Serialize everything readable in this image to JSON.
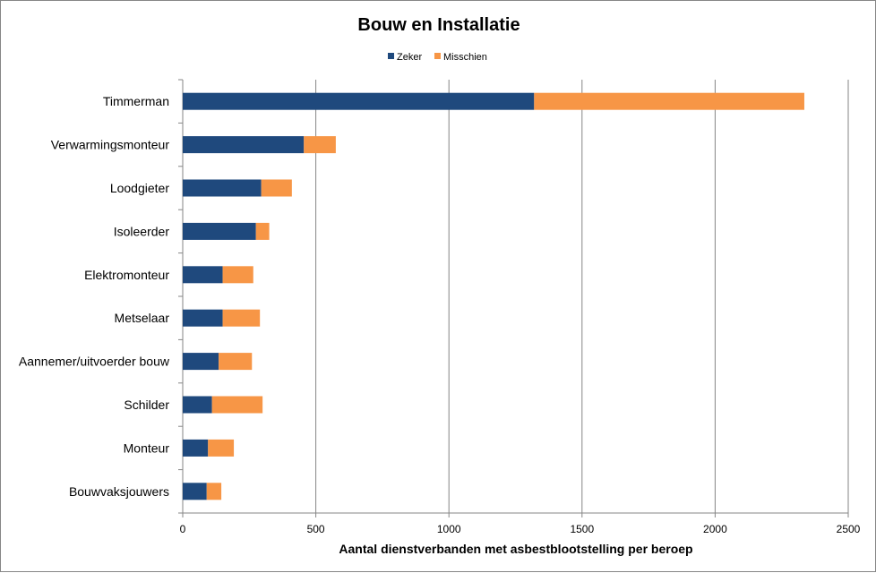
{
  "chart_data": {
    "type": "bar",
    "orientation": "horizontal",
    "stacked": true,
    "title": "Bouw en Installatie",
    "xlabel": "Aantal dienstverbanden met asbestblootstelling per beroep",
    "ylabel": "",
    "xlim": [
      0,
      2500
    ],
    "xticks": [
      "0",
      "500",
      "1000",
      "1500",
      "2000",
      "2500"
    ],
    "grid": "vertical",
    "legend": "top-center",
    "categories": [
      "Timmerman",
      "Verwarmingsmonteur",
      "Loodgieter",
      "Isoleerder",
      "Elektromonteur",
      "Metselaar",
      "Aannemer/uitvoerder bouw",
      "Schilder",
      "Monteur",
      "Bouwvaksjouwers"
    ],
    "series": [
      {
        "name": "Zeker",
        "color": "#1f497d",
        "values": [
          1320,
          455,
          295,
          275,
          150,
          150,
          135,
          110,
          95,
          90
        ]
      },
      {
        "name": "Misschien",
        "color": "#f79646",
        "values": [
          1015,
          120,
          115,
          50,
          115,
          140,
          125,
          190,
          97,
          55
        ]
      }
    ]
  }
}
